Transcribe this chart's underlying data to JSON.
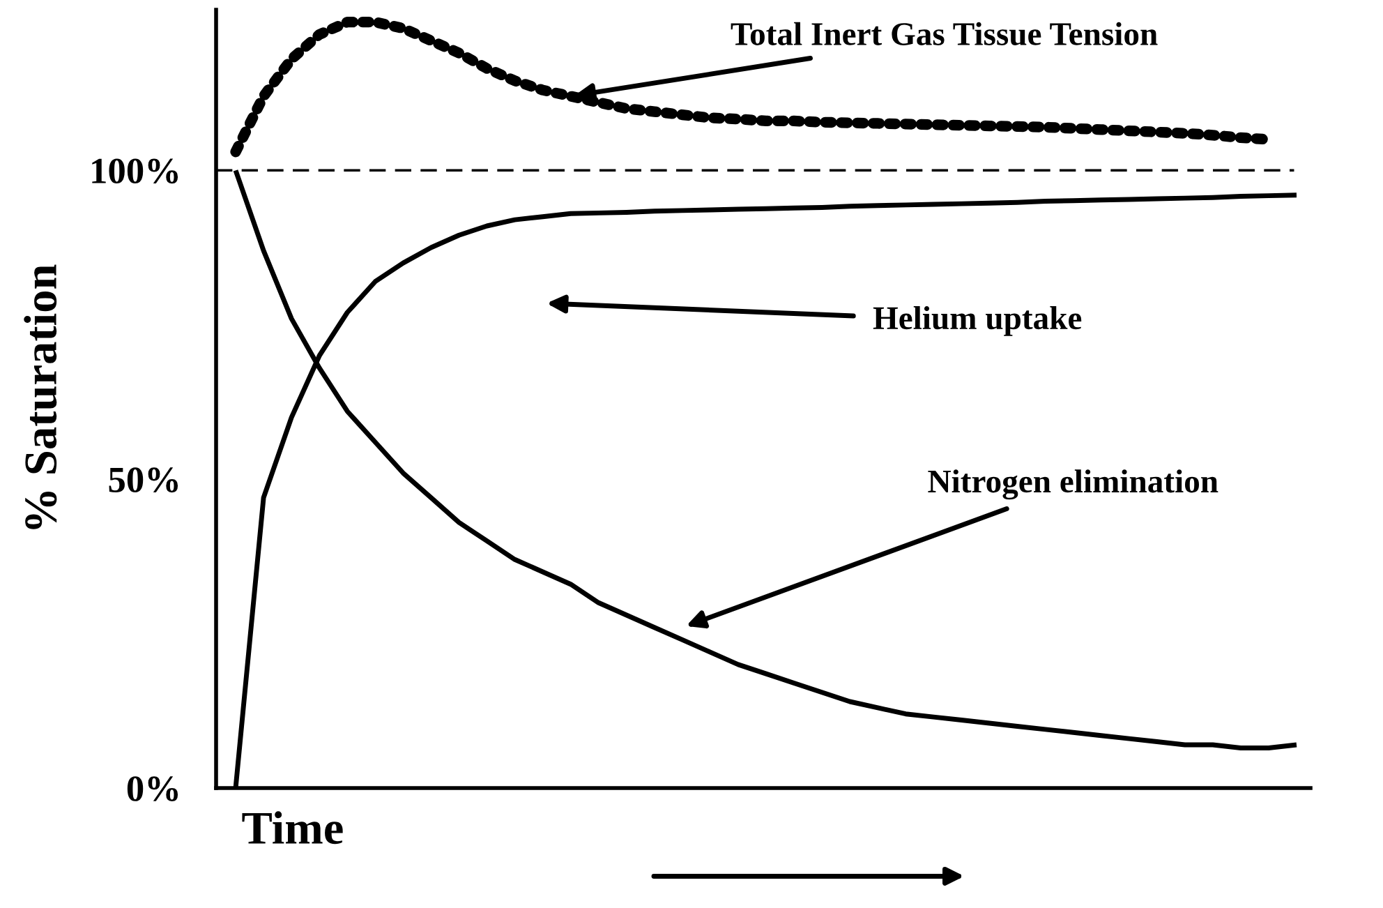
{
  "chart_data": {
    "type": "line",
    "ylabel": "% Saturation",
    "xlabel": "Time",
    "categories": [
      null,
      null,
      null,
      null,
      null,
      null,
      null,
      null,
      null,
      null,
      null,
      null,
      null,
      null,
      null,
      null,
      null,
      null,
      null,
      null,
      null,
      null,
      null,
      null,
      null,
      null,
      null,
      null,
      null,
      null,
      null,
      null,
      null,
      null,
      null,
      null,
      null,
      null,
      null
    ],
    "series": [
      {
        "color": "#000000",
        "line_style": "dotted",
        "values": [
          103,
          112,
          118,
          122,
          124,
          124,
          123,
          121,
          119,
          116.5,
          114.5,
          113,
          112,
          111,
          110,
          109.5,
          109,
          108.5,
          108.3,
          108,
          108,
          107.8,
          107.7,
          107.6,
          107.5,
          107.4,
          107.3,
          107.2,
          107.1,
          107,
          106.8,
          106.6,
          106.4,
          106.2,
          106,
          105.7,
          105.3,
          105,
          null
        ]
      },
      {
        "color": "#000000",
        "line_style": "solid",
        "values": [
          0,
          47,
          60,
          70,
          77,
          82,
          85,
          87.5,
          89.5,
          91,
          92,
          92.5,
          93,
          93.1,
          93.2,
          93.4,
          93.5,
          93.6,
          93.7,
          93.8,
          93.9,
          94,
          94.2,
          94.3,
          94.4,
          94.5,
          94.6,
          94.7,
          94.8,
          95,
          95.1,
          95.2,
          95.3,
          95.4,
          95.5,
          95.6,
          95.8,
          95.9,
          96
        ]
      },
      {
        "color": "#000000",
        "line_style": "solid",
        "values": [
          100,
          87,
          76,
          68,
          61,
          56,
          51,
          47,
          43,
          40,
          37,
          35,
          33,
          30,
          28,
          26,
          24,
          22,
          20,
          18.5,
          17,
          15.5,
          14,
          13,
          12,
          11.5,
          11,
          10.5,
          10,
          9.5,
          9,
          8.5,
          8,
          7.5,
          7,
          7,
          6.5,
          6.5,
          7
        ]
      }
    ],
    "ylim": [
      0,
      126
    ],
    "yticks": [
      {
        "value": 0,
        "label": "0%"
      },
      {
        "value": 50,
        "label": "50%"
      },
      {
        "value": 100,
        "label": "100%"
      }
    ],
    "ref_lines": [
      {
        "axis": "y",
        "value": 100,
        "label": null,
        "color": "#000000",
        "line_style": "dashed"
      }
    ],
    "annotations": [
      "Total Inert Gas Tissue Tension",
      "Helium uptake",
      "Nitrogen elimination"
    ],
    "tick_labels": "y",
    "grid": false,
    "legend": false,
    "marker": "none"
  }
}
